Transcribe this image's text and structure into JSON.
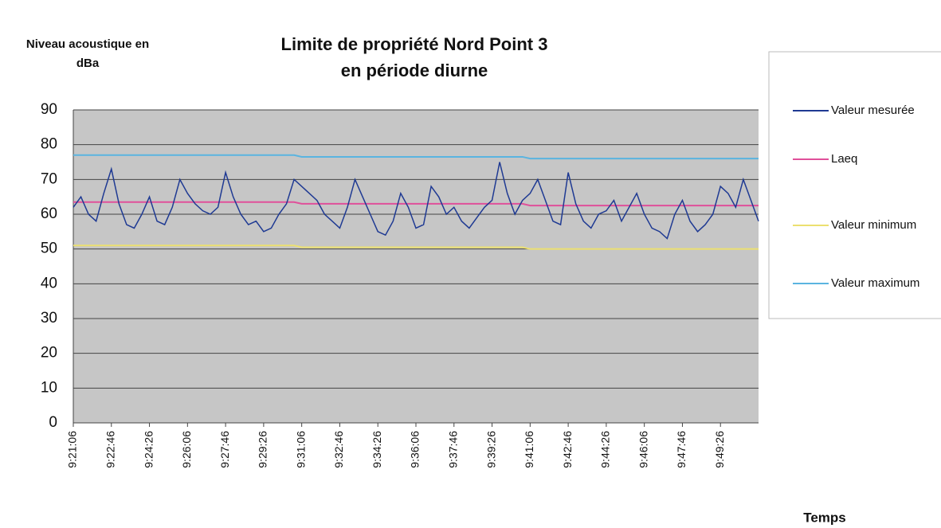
{
  "chart_data": {
    "type": "line",
    "title": [
      "Limite de propriété Nord Point 3",
      "en période diurne"
    ],
    "ylabel": [
      "Niveau acoustique en",
      "dBa"
    ],
    "xlabel": "Temps",
    "categories": [
      "9:21:06",
      null,
      null,
      null,
      null,
      "9:22:46",
      null,
      null,
      null,
      null,
      "9:24:26",
      null,
      null,
      null,
      null,
      "9:26:06",
      null,
      null,
      null,
      null,
      "9:27:46",
      null,
      null,
      null,
      null,
      "9:29:26",
      null,
      null,
      null,
      null,
      "9:31:06",
      null,
      null,
      null,
      null,
      "9:32:46",
      null,
      null,
      null,
      null,
      "9:34:26",
      null,
      null,
      null,
      null,
      "9:36:06",
      null,
      null,
      null,
      null,
      "9:37:46",
      null,
      null,
      null,
      null,
      "9:39:26",
      null,
      null,
      null,
      null,
      "9:41:06",
      null,
      null,
      null,
      null,
      "9:42:46",
      null,
      null,
      null,
      null,
      "9:44:26",
      null,
      null,
      null,
      null,
      "9:46:06",
      null,
      null,
      null,
      null,
      "9:47:46",
      null,
      null,
      null,
      null,
      "9:49:26",
      null,
      null,
      null,
      null,
      null
    ],
    "series": [
      {
        "name": "Valeur mesurée",
        "color": "#1f3a93",
        "values": [
          62,
          65,
          60,
          58,
          66,
          73,
          63,
          57,
          56,
          60,
          65,
          58,
          57,
          62,
          70,
          66,
          63,
          61,
          60,
          62,
          72,
          65,
          60,
          57,
          58,
          55,
          56,
          60,
          63,
          70,
          68,
          66,
          64,
          60,
          58,
          56,
          62,
          70,
          65,
          60,
          55,
          54,
          58,
          66,
          62,
          56,
          57,
          68,
          65,
          60,
          62,
          58,
          56,
          59,
          62,
          64,
          75,
          66,
          60,
          64,
          66,
          70,
          64,
          58,
          57,
          72,
          63,
          58,
          56,
          60,
          61,
          64,
          58,
          62,
          66,
          60,
          56,
          55,
          53,
          60,
          64,
          58,
          55,
          57,
          60,
          68,
          66,
          62,
          70,
          64,
          58
        ]
      },
      {
        "name": "Laeq",
        "color": "#e0509a",
        "values": [
          63.5,
          63.5,
          63.5,
          63.5,
          63.5,
          63.5,
          63.5,
          63.5,
          63.5,
          63.5,
          63.5,
          63.5,
          63.5,
          63.5,
          63.5,
          63.5,
          63.5,
          63.5,
          63.5,
          63.5,
          63.5,
          63.5,
          63.5,
          63.5,
          63.5,
          63.5,
          63.5,
          63.5,
          63.5,
          63.5,
          63,
          63,
          63,
          63,
          63,
          63,
          63,
          63,
          63,
          63,
          63,
          63,
          63,
          63,
          63,
          63,
          63,
          63,
          63,
          63,
          63,
          63,
          63,
          63,
          63,
          63,
          63,
          63,
          63,
          63,
          62.5,
          62.5,
          62.5,
          62.5,
          62.5,
          62.5,
          62.5,
          62.5,
          62.5,
          62.5,
          62.5,
          62.5,
          62.5,
          62.5,
          62.5,
          62.5,
          62.5,
          62.5,
          62.5,
          62.5,
          62.5,
          62.5,
          62.5,
          62.5,
          62.5,
          62.5,
          62.5,
          62.5,
          62.5,
          62.5,
          62.5
        ]
      },
      {
        "name": "Valeur minimum",
        "color": "#ece070",
        "values": [
          51,
          51,
          51,
          51,
          51,
          51,
          51,
          51,
          51,
          51,
          51,
          51,
          51,
          51,
          51,
          51,
          51,
          51,
          51,
          51,
          51,
          51,
          51,
          51,
          51,
          51,
          51,
          51,
          51,
          51,
          50.5,
          50.5,
          50.5,
          50.5,
          50.5,
          50.5,
          50.5,
          50.5,
          50.5,
          50.5,
          50.5,
          50.5,
          50.5,
          50.5,
          50.5,
          50.5,
          50.5,
          50.5,
          50.5,
          50.5,
          50.5,
          50.5,
          50.5,
          50.5,
          50.5,
          50.5,
          50.5,
          50.5,
          50.5,
          50.5,
          50,
          50,
          50,
          50,
          50,
          50,
          50,
          50,
          50,
          50,
          50,
          50,
          50,
          50,
          50,
          50,
          50,
          50,
          50,
          50,
          50,
          50,
          50,
          50,
          50,
          50,
          50,
          50,
          50,
          50,
          50
        ]
      },
      {
        "name": "Valeur maximum",
        "color": "#5ab4e0",
        "values": [
          77,
          77,
          77,
          77,
          77,
          77,
          77,
          77,
          77,
          77,
          77,
          77,
          77,
          77,
          77,
          77,
          77,
          77,
          77,
          77,
          77,
          77,
          77,
          77,
          77,
          77,
          77,
          77,
          77,
          77,
          76.5,
          76.5,
          76.5,
          76.5,
          76.5,
          76.5,
          76.5,
          76.5,
          76.5,
          76.5,
          76.5,
          76.5,
          76.5,
          76.5,
          76.5,
          76.5,
          76.5,
          76.5,
          76.5,
          76.5,
          76.5,
          76.5,
          76.5,
          76.5,
          76.5,
          76.5,
          76.5,
          76.5,
          76.5,
          76.5,
          76,
          76,
          76,
          76,
          76,
          76,
          76,
          76,
          76,
          76,
          76,
          76,
          76,
          76,
          76,
          76,
          76,
          76,
          76,
          76,
          76,
          76,
          76,
          76,
          76,
          76,
          76,
          76,
          76,
          76,
          76
        ]
      }
    ],
    "ylim": [
      0,
      90
    ],
    "yticks": [
      0,
      10,
      20,
      30,
      40,
      50,
      60,
      70,
      80,
      90
    ],
    "grid": true,
    "legend": "right"
  }
}
